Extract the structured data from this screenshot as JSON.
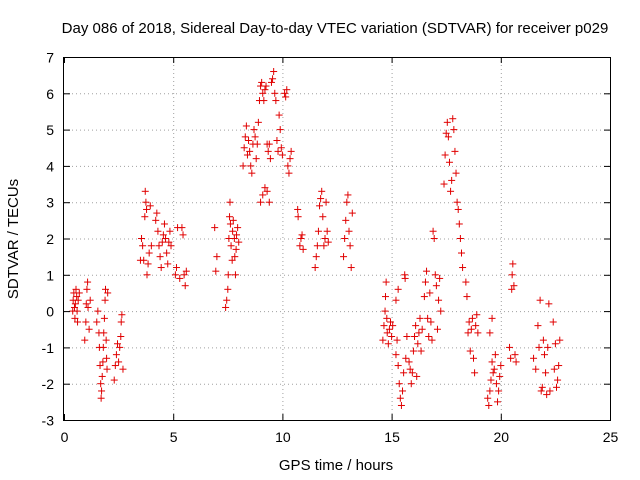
{
  "chart_data": {
    "type": "scatter",
    "title": "Day 086 of 2018, Sidereal Day-to-day VTEC variation (SDTVAR) for receiver p029",
    "xlabel": "GPS time / hours",
    "ylabel": "SDTVAR / TECUs",
    "xlim": [
      0,
      25
    ],
    "ylim": [
      -3,
      7
    ],
    "xticks": [
      0,
      5,
      10,
      15,
      20,
      25
    ],
    "yticks": [
      -3,
      -2,
      -1,
      0,
      1,
      2,
      3,
      4,
      5,
      6,
      7
    ],
    "grid": true,
    "marker": "+",
    "color": "#e00000",
    "series": [
      {
        "name": "SDTVAR",
        "points": [
          [
            0.4,
            0.0
          ],
          [
            0.42,
            0.3
          ],
          [
            0.45,
            0.5
          ],
          [
            0.48,
            0.1
          ],
          [
            0.5,
            -0.2
          ],
          [
            0.52,
            0.2
          ],
          [
            0.55,
            0.6
          ],
          [
            0.58,
            0.4
          ],
          [
            0.6,
            0.0
          ],
          [
            0.62,
            -0.3
          ],
          [
            0.65,
            0.3
          ],
          [
            0.7,
            0.5
          ],
          [
            0.95,
            -0.8
          ],
          [
            1.0,
            -0.3
          ],
          [
            1.02,
            0.2
          ],
          [
            1.05,
            0.6
          ],
          [
            1.08,
            0.8
          ],
          [
            1.1,
            0.1
          ],
          [
            1.15,
            -0.5
          ],
          [
            1.2,
            0.3
          ],
          [
            1.5,
            -0.3
          ],
          [
            1.55,
            0.0
          ],
          [
            1.6,
            -0.6
          ],
          [
            1.62,
            -1.0
          ],
          [
            1.65,
            -1.5
          ],
          [
            1.68,
            -2.0
          ],
          [
            1.7,
            -2.4
          ],
          [
            1.72,
            -2.2
          ],
          [
            1.75,
            -1.8
          ],
          [
            1.78,
            -1.4
          ],
          [
            1.8,
            -1.0
          ],
          [
            1.82,
            -0.6
          ],
          [
            1.85,
            -0.2
          ],
          [
            1.88,
            0.3
          ],
          [
            1.9,
            0.6
          ],
          [
            1.93,
            -0.8
          ],
          [
            1.95,
            -1.3
          ],
          [
            1.97,
            -1.6
          ],
          [
            2.0,
            0.5
          ],
          [
            2.3,
            -1.9
          ],
          [
            2.35,
            -1.5
          ],
          [
            2.4,
            -1.2
          ],
          [
            2.45,
            -0.9
          ],
          [
            2.5,
            -1.4
          ],
          [
            2.55,
            -1.0
          ],
          [
            2.6,
            -0.7
          ],
          [
            2.62,
            -0.3
          ],
          [
            2.65,
            -0.1
          ],
          [
            2.7,
            -1.6
          ],
          [
            3.5,
            1.4
          ],
          [
            3.55,
            2.0
          ],
          [
            3.6,
            1.8
          ],
          [
            3.65,
            1.4
          ],
          [
            3.7,
            2.6
          ],
          [
            3.72,
            3.3
          ],
          [
            3.75,
            3.0
          ],
          [
            3.78,
            2.8
          ],
          [
            3.8,
            1.0
          ],
          [
            3.85,
            1.3
          ],
          [
            3.9,
            1.6
          ],
          [
            3.95,
            2.9
          ],
          [
            4.0,
            1.8
          ],
          [
            4.2,
            2.5
          ],
          [
            4.25,
            2.7
          ],
          [
            4.3,
            2.2
          ],
          [
            4.35,
            1.8
          ],
          [
            4.4,
            1.5
          ],
          [
            4.45,
            1.2
          ],
          [
            4.5,
            1.9
          ],
          [
            4.55,
            2.1
          ],
          [
            4.6,
            2.4
          ],
          [
            4.65,
            2.0
          ],
          [
            4.7,
            1.6
          ],
          [
            4.75,
            1.3
          ],
          [
            4.8,
            1.9
          ],
          [
            4.85,
            2.2
          ],
          [
            4.9,
            1.8
          ],
          [
            5.1,
            1.0
          ],
          [
            5.15,
            1.2
          ],
          [
            5.2,
            2.3
          ],
          [
            5.3,
            0.9
          ],
          [
            5.4,
            2.3
          ],
          [
            5.45,
            2.1
          ],
          [
            5.5,
            1.0
          ],
          [
            5.55,
            0.7
          ],
          [
            5.6,
            1.1
          ],
          [
            6.9,
            2.3
          ],
          [
            6.95,
            1.1
          ],
          [
            7.0,
            1.5
          ],
          [
            7.4,
            0.1
          ],
          [
            7.45,
            0.3
          ],
          [
            7.5,
            0.6
          ],
          [
            7.52,
            1.0
          ],
          [
            7.55,
            2.0
          ],
          [
            7.58,
            2.6
          ],
          [
            7.6,
            3.0
          ],
          [
            7.62,
            2.4
          ],
          [
            7.65,
            1.8
          ],
          [
            7.7,
            1.4
          ],
          [
            7.72,
            2.2
          ],
          [
            7.75,
            2.5
          ],
          [
            7.8,
            2.0
          ],
          [
            7.82,
            1.5
          ],
          [
            7.85,
            1.0
          ],
          [
            7.88,
            1.7
          ],
          [
            7.9,
            2.1
          ],
          [
            7.95,
            2.3
          ],
          [
            8.0,
            1.9
          ],
          [
            8.2,
            4.0
          ],
          [
            8.25,
            4.5
          ],
          [
            8.3,
            4.8
          ],
          [
            8.35,
            5.1
          ],
          [
            8.4,
            4.3
          ],
          [
            8.45,
            4.7
          ],
          [
            8.5,
            4.4
          ],
          [
            8.55,
            4.0
          ],
          [
            8.6,
            3.8
          ],
          [
            8.65,
            4.6
          ],
          [
            8.7,
            5.0
          ],
          [
            8.75,
            4.8
          ],
          [
            8.8,
            4.2
          ],
          [
            8.85,
            4.6
          ],
          [
            8.9,
            5.2
          ],
          [
            8.95,
            5.8
          ],
          [
            9.0,
            6.2
          ],
          [
            9.05,
            6.3
          ],
          [
            9.1,
            6.0
          ],
          [
            9.15,
            5.8
          ],
          [
            9.2,
            6.1
          ],
          [
            9.25,
            6.2
          ],
          [
            9.3,
            4.6
          ],
          [
            9.35,
            4.4
          ],
          [
            9.4,
            4.6
          ],
          [
            9.45,
            4.2
          ],
          [
            9.5,
            6.3
          ],
          [
            9.55,
            6.4
          ],
          [
            9.6,
            6.6
          ],
          [
            9.65,
            6.0
          ],
          [
            9.7,
            5.8
          ],
          [
            9.75,
            4.7
          ],
          [
            9.8,
            4.4
          ],
          [
            9.0,
            3.0
          ],
          [
            9.1,
            3.2
          ],
          [
            9.2,
            3.4
          ],
          [
            9.3,
            3.3
          ],
          [
            9.4,
            3.0
          ],
          [
            9.85,
            5.4
          ],
          [
            9.9,
            5.0
          ],
          [
            9.95,
            4.5
          ],
          [
            10.0,
            4.3
          ],
          [
            10.1,
            6.0
          ],
          [
            10.15,
            5.9
          ],
          [
            10.2,
            6.1
          ],
          [
            10.25,
            4.0
          ],
          [
            10.3,
            3.8
          ],
          [
            10.35,
            4.2
          ],
          [
            10.4,
            4.4
          ],
          [
            10.7,
            2.8
          ],
          [
            10.72,
            2.6
          ],
          [
            10.8,
            1.8
          ],
          [
            10.85,
            2.0
          ],
          [
            10.9,
            2.1
          ],
          [
            10.95,
            1.7
          ],
          [
            11.5,
            1.2
          ],
          [
            11.55,
            1.5
          ],
          [
            11.6,
            1.8
          ],
          [
            11.65,
            2.2
          ],
          [
            11.7,
            2.9
          ],
          [
            11.75,
            3.1
          ],
          [
            11.8,
            3.3
          ],
          [
            11.85,
            2.6
          ],
          [
            11.9,
            1.8
          ],
          [
            11.95,
            2.0
          ],
          [
            12.0,
            3.0
          ],
          [
            12.05,
            2.2
          ],
          [
            12.1,
            1.9
          ],
          [
            12.8,
            1.5
          ],
          [
            12.85,
            2.0
          ],
          [
            12.9,
            2.5
          ],
          [
            12.95,
            3.0
          ],
          [
            13.0,
            3.2
          ],
          [
            13.05,
            2.2
          ],
          [
            13.1,
            1.8
          ],
          [
            13.15,
            1.2
          ],
          [
            13.2,
            2.7
          ],
          [
            14.6,
            -0.8
          ],
          [
            14.65,
            -0.4
          ],
          [
            14.7,
            0.0
          ],
          [
            14.72,
            0.4
          ],
          [
            14.75,
            0.8
          ],
          [
            14.78,
            -0.2
          ],
          [
            14.8,
            -0.6
          ],
          [
            14.85,
            -0.9
          ],
          [
            14.9,
            -0.5
          ],
          [
            14.95,
            -0.3
          ],
          [
            15.0,
            -0.7
          ],
          [
            15.05,
            -0.4
          ],
          [
            15.2,
            -1.2
          ],
          [
            15.25,
            -0.8
          ],
          [
            15.3,
            -1.5
          ],
          [
            15.35,
            -2.0
          ],
          [
            15.4,
            -2.4
          ],
          [
            15.45,
            -2.6
          ],
          [
            15.5,
            -2.2
          ],
          [
            15.55,
            -1.7
          ],
          [
            15.6,
            1.0
          ],
          [
            15.62,
            0.9
          ],
          [
            15.65,
            -1.3
          ],
          [
            15.7,
            -0.7
          ],
          [
            15.2,
            0.3
          ],
          [
            15.3,
            0.6
          ],
          [
            15.8,
            -1.4
          ],
          [
            15.85,
            -1.6
          ],
          [
            15.9,
            -2.0
          ],
          [
            15.95,
            -1.7
          ],
          [
            16.0,
            -1.1
          ],
          [
            16.05,
            -0.7
          ],
          [
            16.1,
            -0.4
          ],
          [
            16.15,
            -1.8
          ],
          [
            16.2,
            -0.9
          ],
          [
            16.25,
            -0.6
          ],
          [
            16.3,
            -0.2
          ],
          [
            16.35,
            -1.1
          ],
          [
            16.4,
            -0.5
          ],
          [
            16.5,
            0.4
          ],
          [
            16.55,
            0.8
          ],
          [
            16.6,
            1.1
          ],
          [
            16.65,
            -0.2
          ],
          [
            16.7,
            -0.7
          ],
          [
            16.75,
            0.5
          ],
          [
            16.8,
            -0.3
          ],
          [
            16.85,
            -0.8
          ],
          [
            16.9,
            2.2
          ],
          [
            16.95,
            2.0
          ],
          [
            17.0,
            1.0
          ],
          [
            17.05,
            0.7
          ],
          [
            17.1,
            -0.5
          ],
          [
            17.15,
            0.3
          ],
          [
            17.2,
            0.9
          ],
          [
            17.25,
            0.0
          ],
          [
            17.4,
            3.5
          ],
          [
            17.45,
            4.3
          ],
          [
            17.5,
            4.9
          ],
          [
            17.55,
            5.2
          ],
          [
            17.6,
            4.8
          ],
          [
            17.65,
            4.1
          ],
          [
            17.7,
            3.3
          ],
          [
            17.75,
            3.6
          ],
          [
            17.8,
            5.3
          ],
          [
            17.85,
            5.0
          ],
          [
            17.9,
            4.4
          ],
          [
            17.95,
            3.8
          ],
          [
            18.0,
            3.0
          ],
          [
            18.05,
            2.8
          ],
          [
            18.1,
            2.4
          ],
          [
            18.15,
            2.0
          ],
          [
            18.2,
            1.6
          ],
          [
            18.25,
            1.2
          ],
          [
            18.4,
            0.8
          ],
          [
            18.45,
            0.4
          ],
          [
            18.5,
            -0.6
          ],
          [
            18.55,
            -0.3
          ],
          [
            18.6,
            -1.1
          ],
          [
            18.65,
            -0.5
          ],
          [
            18.7,
            -0.2
          ],
          [
            18.75,
            -1.3
          ],
          [
            18.8,
            -1.7
          ],
          [
            18.85,
            -0.4
          ],
          [
            18.9,
            -0.1
          ],
          [
            18.95,
            -0.6
          ],
          [
            19.4,
            -2.4
          ],
          [
            19.45,
            -2.6
          ],
          [
            19.5,
            -2.2
          ],
          [
            19.55,
            -1.9
          ],
          [
            19.6,
            -1.4
          ],
          [
            19.65,
            -1.7
          ],
          [
            19.7,
            -1.6
          ],
          [
            19.75,
            -1.2
          ],
          [
            19.8,
            -2.0
          ],
          [
            19.85,
            -2.5
          ],
          [
            19.9,
            -2.2
          ],
          [
            19.95,
            -1.8
          ],
          [
            20.0,
            -1.5
          ],
          [
            19.5,
            -0.6
          ],
          [
            19.6,
            -0.2
          ],
          [
            20.4,
            -1.0
          ],
          [
            20.45,
            -1.3
          ],
          [
            20.5,
            0.6
          ],
          [
            20.52,
            1.0
          ],
          [
            20.55,
            1.3
          ],
          [
            20.6,
            0.7
          ],
          [
            20.65,
            -1.2
          ],
          [
            20.7,
            -1.4
          ],
          [
            21.5,
            -1.3
          ],
          [
            21.6,
            -1.6
          ],
          [
            21.7,
            -0.4
          ],
          [
            21.75,
            -1.0
          ],
          [
            21.8,
            0.3
          ],
          [
            21.85,
            -2.2
          ],
          [
            21.9,
            -2.1
          ],
          [
            21.95,
            -0.8
          ],
          [
            22.0,
            -1.2
          ],
          [
            22.05,
            -1.7
          ],
          [
            22.1,
            -2.3
          ],
          [
            22.15,
            -1.0
          ],
          [
            22.2,
            0.2
          ],
          [
            22.25,
            -2.2
          ],
          [
            22.4,
            -0.3
          ],
          [
            22.45,
            -1.6
          ],
          [
            22.5,
            -0.9
          ],
          [
            22.55,
            -2.1
          ],
          [
            22.6,
            -1.9
          ],
          [
            22.65,
            -1.5
          ],
          [
            22.7,
            -0.8
          ]
        ]
      }
    ]
  }
}
